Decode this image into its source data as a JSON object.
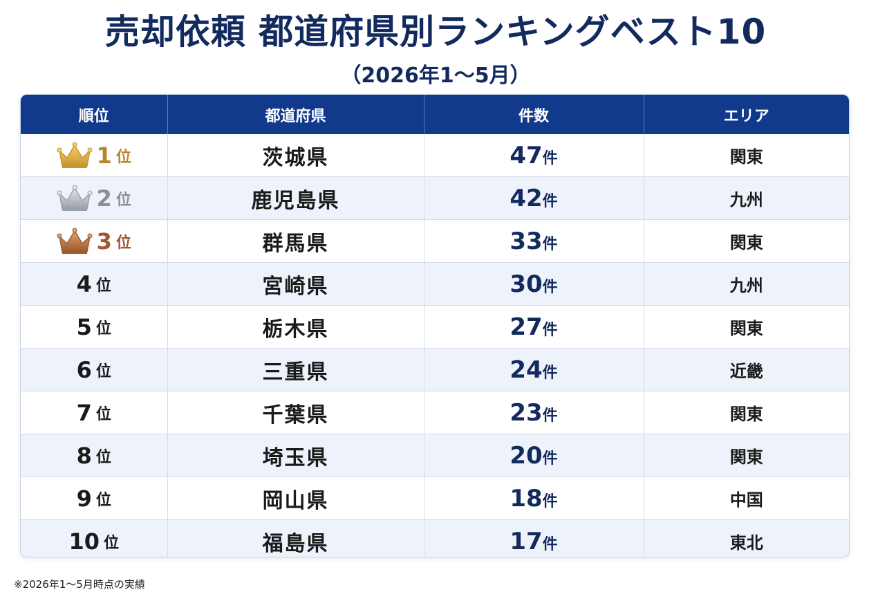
{
  "title": "売却依頼 都道府県別ランキングベスト10",
  "subtitle": "（2026年1～5月）",
  "footnote": "※2026年1～5月時点の実績",
  "colors": {
    "header_bg": "#123a8c",
    "title": "#132a5e",
    "gold": "#b7862a",
    "silver": "#8a8f97",
    "bronze": "#a0582c",
    "row_alt": "#eef3fb"
  },
  "chart_data": {
    "type": "table",
    "columns": [
      "順位",
      "都道府県",
      "件数",
      "エリア"
    ],
    "rank_unit": "位",
    "count_unit": "件",
    "rows": [
      {
        "rank": "1",
        "prefecture": "茨城県",
        "count": "47",
        "area": "関東",
        "medal": "gold"
      },
      {
        "rank": "2",
        "prefecture": "鹿児島県",
        "count": "42",
        "area": "九州",
        "medal": "silver"
      },
      {
        "rank": "3",
        "prefecture": "群馬県",
        "count": "33",
        "area": "関東",
        "medal": "bronze"
      },
      {
        "rank": "4",
        "prefecture": "宮崎県",
        "count": "30",
        "area": "九州",
        "medal": ""
      },
      {
        "rank": "5",
        "prefecture": "栃木県",
        "count": "27",
        "area": "関東",
        "medal": ""
      },
      {
        "rank": "6",
        "prefecture": "三重県",
        "count": "24",
        "area": "近畿",
        "medal": ""
      },
      {
        "rank": "7",
        "prefecture": "千葉県",
        "count": "23",
        "area": "関東",
        "medal": ""
      },
      {
        "rank": "8",
        "prefecture": "埼玉県",
        "count": "20",
        "area": "関東",
        "medal": ""
      },
      {
        "rank": "9",
        "prefecture": "岡山県",
        "count": "18",
        "area": "中国",
        "medal": ""
      },
      {
        "rank": "10",
        "prefecture": "福島県",
        "count": "17",
        "area": "東北",
        "medal": ""
      }
    ]
  }
}
